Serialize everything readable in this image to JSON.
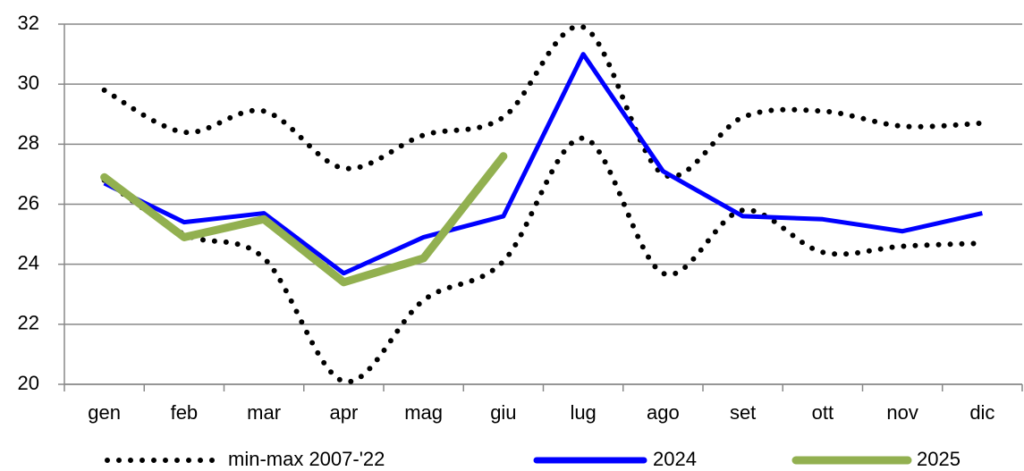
{
  "chart_data": {
    "type": "line",
    "categories": [
      "gen",
      "feb",
      "mar",
      "apr",
      "mag",
      "giu",
      "lug",
      "ago",
      "set",
      "ott",
      "nov",
      "dic"
    ],
    "ylim": [
      20,
      32
    ],
    "yticks": [
      20,
      22,
      24,
      26,
      28,
      30,
      32
    ],
    "grid": true,
    "legend": "bottom",
    "series": [
      {
        "name": "min-max 2007-'22",
        "color": "#000000",
        "style": "dotted",
        "smooth": true,
        "max": [
          29.8,
          28.4,
          29.1,
          27.2,
          28.3,
          28.9,
          31.9,
          27.0,
          28.9,
          29.1,
          28.6,
          28.7
        ],
        "min": [
          26.8,
          25.0,
          24.2,
          20.1,
          22.8,
          24.1,
          28.2,
          23.7,
          25.8,
          24.4,
          24.6,
          24.7
        ]
      },
      {
        "name": "2024",
        "color": "#0000ff",
        "style": "solid",
        "values": [
          26.7,
          25.4,
          25.7,
          23.7,
          24.9,
          25.6,
          31.0,
          27.1,
          25.6,
          25.5,
          25.1,
          25.7
        ]
      },
      {
        "name": "2025",
        "color": "#92b050",
        "style": "thick",
        "values": [
          26.9,
          24.9,
          25.5,
          23.4,
          24.2,
          27.6,
          null,
          null,
          null,
          null,
          null,
          null
        ]
      }
    ]
  }
}
